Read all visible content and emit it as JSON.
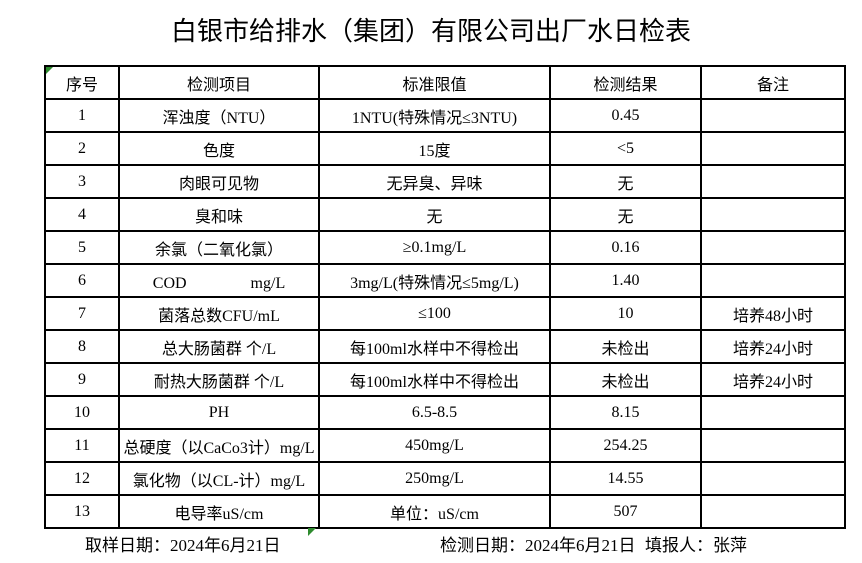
{
  "title": "白银市给排水（集团）有限公司出厂水日检表",
  "colors": {
    "border": "#000000",
    "excel_marker_green": "#2E8B2E",
    "background": "#FFFFFF"
  },
  "icons": {
    "header_corner_marker": "excel-green-triangle",
    "footer_corner_marker": "excel-green-triangle"
  },
  "table": {
    "headers": {
      "no": "序号",
      "item": "检测项目",
      "limit": "标准限值",
      "result": "检测结果",
      "note": "备注"
    },
    "rows": [
      {
        "no": "1",
        "item": "浑浊度（NTU）",
        "limit": "1NTU(特殊情况≤3NTU)",
        "result": "0.45",
        "note": ""
      },
      {
        "no": "2",
        "item": "色度",
        "limit": "15度",
        "result": "<5",
        "note": ""
      },
      {
        "no": "3",
        "item": "肉眼可见物",
        "limit": "无异臭、异味",
        "result": "无",
        "note": ""
      },
      {
        "no": "4",
        "item": "臭和味",
        "limit": "无",
        "result": "无",
        "note": ""
      },
      {
        "no": "5",
        "item": "余氯（二氧化氯）",
        "limit": "≥0.1mg/L",
        "result": "0.16",
        "note": ""
      },
      {
        "no": "6",
        "item": "COD　　　　mg/L",
        "limit": "3mg/L(特殊情况≤5mg/L)",
        "result": "1.40",
        "note": ""
      },
      {
        "no": "7",
        "item": "菌落总数CFU/mL",
        "limit": "≤100",
        "result": "10",
        "note": "培养48小时"
      },
      {
        "no": "8",
        "item": "总大肠菌群 个/L",
        "limit": "每100ml水样中不得检出",
        "result": "未检出",
        "note": "培养24小时"
      },
      {
        "no": "9",
        "item": "耐热大肠菌群 个/L",
        "limit": "每100ml水样中不得检出",
        "result": "未检出",
        "note": "培养24小时"
      },
      {
        "no": "10",
        "item": "PH",
        "limit": "6.5-8.5",
        "result": "8.15",
        "note": ""
      },
      {
        "no": "11",
        "item": "总硬度（以CaCo3计）mg/L",
        "limit": "450mg/L",
        "result": "254.25",
        "note": ""
      },
      {
        "no": "12",
        "item": "氯化物（以CL-计）mg/L",
        "limit": "250mg/L",
        "result": "14.55",
        "note": ""
      },
      {
        "no": "13",
        "item": "电导率uS/cm",
        "limit": "单位：uS/cm",
        "result": "507",
        "note": ""
      }
    ]
  },
  "footer": {
    "sampling_date": "取样日期：2024年6月21日",
    "testing_date": "检测日期：2024年6月21日",
    "reporter": "填报人：张萍"
  }
}
